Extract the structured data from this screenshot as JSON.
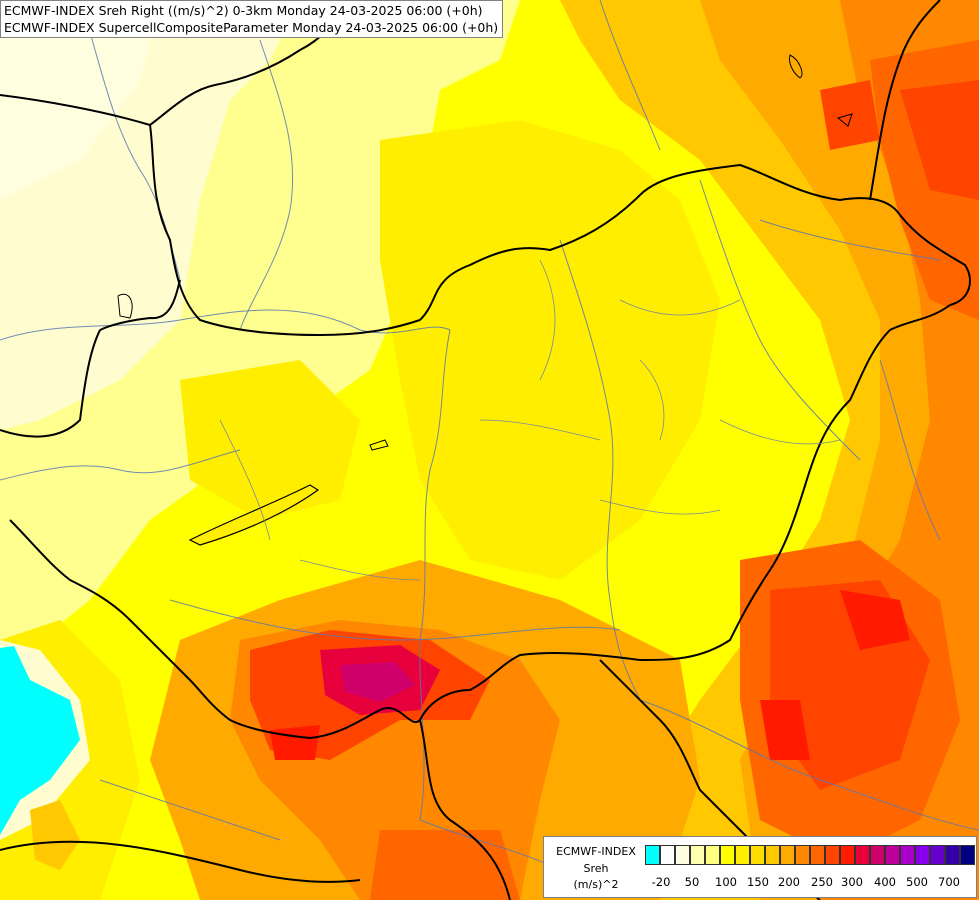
{
  "header": {
    "line1": "ECMWF-INDEX Sreh Right ((m/s)^2) 0-3km Monday 24-03-2025 06:00 (+0h)",
    "line2": "ECMWF-INDEX SupercellCompositeParameter Monday 24-03-2025 06:00 (+0h)"
  },
  "legend": {
    "source": "ECMWF-INDEX",
    "parameter": "Sreh",
    "unit": "(m/s)^2",
    "ticks": [
      "-20",
      "50",
      "100",
      "150",
      "200",
      "250",
      "300",
      "400",
      "500",
      "700"
    ],
    "colors": [
      "#00ffff",
      "#ffffff",
      "#fffde0",
      "#ffffb0",
      "#ffff80",
      "#ffff00",
      "#ffee00",
      "#ffdd00",
      "#ffc800",
      "#ffaa00",
      "#ff8800",
      "#ff6600",
      "#ff4400",
      "#ff1a00",
      "#e8003c",
      "#d0006a",
      "#c0009c",
      "#aa00cc",
      "#8800ee",
      "#6600cc",
      "#3300aa",
      "#000080"
    ]
  }
}
